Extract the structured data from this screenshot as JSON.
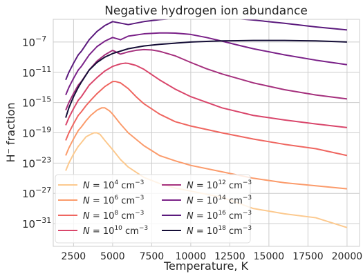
{
  "chart_data": {
    "type": "line",
    "title": "Negative hydrogen ion abundance",
    "xlabel": "Temperature, K",
    "ylabel": "H⁻ fraction",
    "xlim": [
      1200,
      20800
    ],
    "ylim": [
      1e-34,
      0.0001
    ],
    "yscale": "log",
    "grid": true,
    "legend": {
      "placement": "lower-left",
      "columns": 2
    },
    "x_ticks": [
      2500,
      5000,
      7500,
      10000,
      12500,
      15000,
      17500,
      20000
    ],
    "x_tick_labels": [
      "2500",
      "5000",
      "7500",
      "10000",
      "12500",
      "15000",
      "17500",
      "20000"
    ],
    "y_ticks": [
      {
        "value": 1e-07,
        "base": "10",
        "exp": "−7"
      },
      {
        "value": 1e-11,
        "base": "10",
        "exp": "−11"
      },
      {
        "value": 1e-15,
        "base": "10",
        "exp": "−15"
      },
      {
        "value": 1e-19,
        "base": "10",
        "exp": "−19"
      },
      {
        "value": 1e-23,
        "base": "10",
        "exp": "−23"
      },
      {
        "value": 1e-27,
        "base": "10",
        "exp": "−27"
      },
      {
        "value": 1e-31,
        "base": "10",
        "exp": "−31"
      }
    ],
    "series": [
      {
        "name": "N = 10^4 cm^-3",
        "label_parts": {
          "pre": "N = 10",
          "exp": "4",
          "unit": " cm",
          "unit_exp": "−3"
        },
        "color": "#fcc98e",
        "x": [
          2000,
          2200,
          2500,
          2800,
          3000,
          3300,
          3500,
          3800,
          4000,
          4200,
          4500,
          5000,
          5500,
          6000,
          7000,
          8000,
          9000,
          10000,
          12000,
          14000,
          16000,
          18000,
          20000
        ],
        "y": [
          1e-24,
          1e-23,
          1.6e-22,
          1.6e-21,
          5e-21,
          3e-20,
          5e-20,
          1e-19,
          1e-19,
          6e-20,
          1e-20,
          6e-22,
          3e-23,
          3e-24,
          1.3e-25,
          2e-26,
          5e-27,
          2e-27,
          3e-28,
          1e-29,
          2e-30,
          6e-31,
          3e-32
        ]
      },
      {
        "name": "N = 10^6 cm^-3",
        "label_parts": {
          "pre": "N = 10",
          "exp": "6",
          "unit": " cm",
          "unit_exp": "−3"
        },
        "color": "#fb9b6b",
        "x": [
          2000,
          2200,
          2500,
          2800,
          3000,
          3300,
          3600,
          4000,
          4300,
          4500,
          4800,
          5000,
          5500,
          6000,
          7000,
          8000,
          9000,
          10000,
          12000,
          14000,
          16000,
          18000,
          20000
        ],
        "y": [
          1e-22,
          1e-21,
          1.6e-20,
          2e-19,
          6e-19,
          4e-18,
          2e-17,
          1e-16,
          2e-16,
          2e-16,
          8e-17,
          3e-17,
          1.5e-18,
          1e-19,
          2e-21,
          1e-22,
          2e-23,
          5e-24,
          7e-25,
          1e-25,
          2.5e-26,
          1e-26,
          4e-27
        ]
      },
      {
        "name": "N = 10^8 cm^-3",
        "label_parts": {
          "pre": "N = 10",
          "exp": "8",
          "unit": " cm",
          "unit_exp": "−3"
        },
        "color": "#ef6660",
        "x": [
          2000,
          2200,
          2500,
          2800,
          3000,
          3300,
          3600,
          4000,
          4500,
          5000,
          5200,
          5500,
          6000,
          6500,
          7000,
          8000,
          9000,
          10000,
          12000,
          14000,
          16000,
          18000,
          20000
        ],
        "y": [
          1e-20,
          1e-19,
          1.6e-18,
          2e-17,
          6e-17,
          4e-16,
          2e-15,
          1.5e-14,
          1.3e-13,
          6e-13,
          6e-13,
          4e-13,
          7e-14,
          6e-15,
          7e-16,
          3e-17,
          3e-18,
          8e-19,
          1e-19,
          1.5e-20,
          3e-21,
          8e-22,
          1e-22
        ]
      },
      {
        "name": "N = 10^10 cm^-3",
        "label_parts": {
          "pre": "N = 10",
          "exp": "10",
          "unit": " cm",
          "unit_exp": "−3"
        },
        "color": "#d9466b",
        "x": [
          2000,
          2200,
          2500,
          2800,
          3000,
          3500,
          4000,
          4500,
          5000,
          5500,
          5800,
          6000,
          6500,
          7000,
          7500,
          8000,
          9000,
          10000,
          12000,
          14000,
          16000,
          18000,
          20000
        ],
        "y": [
          1e-18,
          1e-17,
          1.6e-16,
          2e-15,
          6e-15,
          2e-13,
          2e-12,
          1.5e-11,
          6e-11,
          1.3e-10,
          1.6e-10,
          1.5e-10,
          8e-11,
          2.5e-11,
          5e-12,
          1e-12,
          6e-14,
          6e-15,
          2e-16,
          2e-17,
          5e-18,
          1.5e-18,
          5e-19
        ]
      },
      {
        "name": "N = 10^12 cm^-3",
        "label_parts": {
          "pre": "N = 10",
          "exp": "12",
          "unit": " cm",
          "unit_exp": "−3"
        },
        "color": "#a5307d",
        "x": [
          2000,
          2200,
          2500,
          2800,
          3000,
          3500,
          4000,
          4500,
          5000,
          5500,
          6000,
          6500,
          7000,
          7500,
          8000,
          8500,
          9000,
          10000,
          11000,
          12000,
          14000,
          16000,
          18000,
          20000
        ],
        "y": [
          1e-16,
          1e-15,
          1.6e-14,
          2e-13,
          6e-13,
          2e-11,
          3e-10,
          2e-09,
          8e-09,
          2.5e-09,
          5e-09,
          8e-09,
          1e-08,
          9e-09,
          6e-09,
          3e-09,
          1.5e-09,
          2e-10,
          3e-11,
          6e-12,
          4e-13,
          5e-14,
          1e-14,
          3e-15
        ]
      },
      {
        "name": "N = 10^14 cm^-3",
        "label_parts": {
          "pre": "N = 10",
          "exp": "14",
          "unit": " cm",
          "unit_exp": "−3"
        },
        "color": "#7a2188",
        "x": [
          2000,
          2200,
          2500,
          2800,
          3000,
          3500,
          4000,
          4500,
          5000,
          5500,
          6000,
          7000,
          8000,
          8500,
          9000,
          10000,
          11000,
          12000,
          13000,
          14000,
          16000,
          18000,
          20000
        ],
        "y": [
          1e-14,
          1e-13,
          1.6e-12,
          2e-11,
          6e-11,
          2e-09,
          2.5e-08,
          1.3e-07,
          4e-07,
          2e-07,
          6e-07,
          1.2e-06,
          1.6e-06,
          1.6e-06,
          1.5e-06,
          1e-06,
          4e-07,
          1.3e-07,
          4e-08,
          1.3e-08,
          2e-09,
          4e-10,
          1e-10
        ]
      },
      {
        "name": "N = 10^16 cm^-3",
        "label_parts": {
          "pre": "N = 10",
          "exp": "16",
          "unit": " cm",
          "unit_exp": "−3"
        },
        "color": "#5b1a7d",
        "x": [
          2000,
          2200,
          2500,
          2800,
          3000,
          3500,
          4000,
          4500,
          5000,
          6000,
          7000,
          8000,
          9000,
          10000,
          11000,
          11500,
          12000,
          13000,
          14000,
          16000,
          18000,
          20000
        ],
        "y": [
          1e-12,
          1e-11,
          1.6e-10,
          2e-09,
          6e-09,
          2e-07,
          2.5e-06,
          1.5e-05,
          5e-05,
          2e-05,
          5e-05,
          9e-05,
          0.00013,
          0.00015,
          0.00016,
          0.00016,
          0.00015,
          0.00012,
          8e-05,
          3e-05,
          1e-05,
          4e-06
        ]
      },
      {
        "name": "N = 10^18 cm^-3",
        "label_parts": {
          "pre": "N = 10",
          "exp": "18",
          "unit": " cm",
          "unit_exp": "−3"
        },
        "color": "#150e37",
        "x": [
          2000,
          2200,
          2500,
          2800,
          3000,
          3500,
          4000,
          4500,
          5000,
          6000,
          7000,
          8000,
          9000,
          10000,
          11000,
          12000,
          13000,
          14000,
          15000,
          16000,
          17000,
          18000,
          19000,
          20000
        ],
        "y": [
          1e-17,
          2e-16,
          6e-15,
          1e-13,
          5e-13,
          2e-11,
          2e-10,
          1e-09,
          3e-09,
          1.3e-08,
          3e-08,
          5e-08,
          7e-08,
          1e-07,
          1.2e-07,
          1.4e-07,
          1.5e-07,
          1.6e-07,
          1.6e-07,
          1.6e-07,
          1.5e-07,
          1.4e-07,
          1.2e-07,
          1e-07
        ]
      }
    ]
  }
}
